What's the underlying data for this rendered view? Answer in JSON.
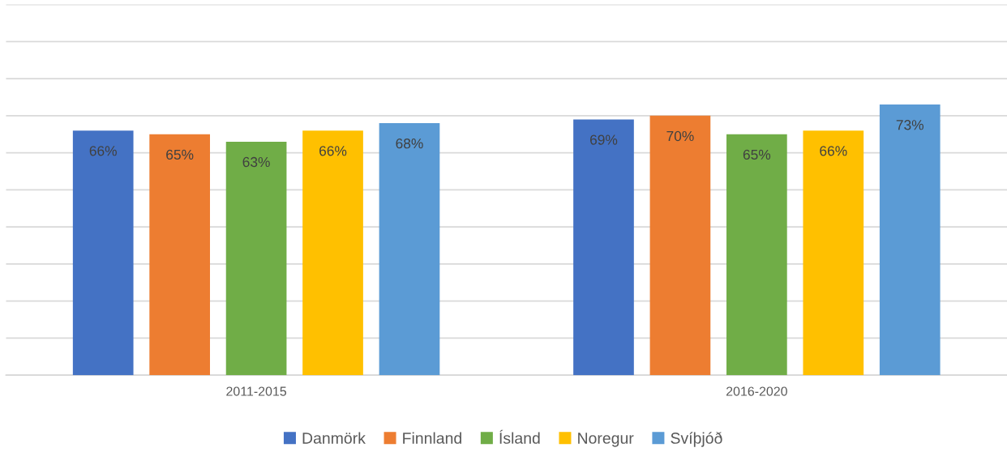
{
  "chart_data": {
    "type": "bar",
    "categories": [
      "2011-2015",
      "2016-2020"
    ],
    "series": [
      {
        "name": "Danmörk",
        "color": "#4472c4",
        "values": [
          66,
          69
        ],
        "value_labels": [
          "66%",
          "69%"
        ]
      },
      {
        "name": "Finnland",
        "color": "#ed7d31",
        "values": [
          65,
          70
        ],
        "value_labels": [
          "65%",
          "70%"
        ]
      },
      {
        "name": "Ísland",
        "color": "#70ad47",
        "values": [
          63,
          65
        ],
        "value_labels": [
          "63%",
          "65%"
        ]
      },
      {
        "name": "Noregur",
        "color": "#ffc000",
        "values": [
          66,
          66
        ],
        "value_labels": [
          "66%",
          "66%"
        ]
      },
      {
        "name": "Svíþjóð",
        "color": "#5b9bd5",
        "values": [
          68,
          73
        ],
        "value_labels": [
          "68%",
          "73%"
        ]
      }
    ],
    "ylim": [
      0,
      100
    ],
    "yticks": [
      {
        "value": 0,
        "label": null
      },
      {
        "value": 10,
        "label": null
      },
      {
        "value": 20,
        "label": null
      },
      {
        "value": 30,
        "label": null
      },
      {
        "value": 40,
        "label": null
      },
      {
        "value": 50,
        "label": null
      },
      {
        "value": 60,
        "label": null
      },
      {
        "value": 70,
        "label": null
      },
      {
        "value": 80,
        "label": null
      },
      {
        "value": 90,
        "label": null
      },
      {
        "value": 100,
        "label": null
      }
    ],
    "tick_labels": "x",
    "grid": "y",
    "legend": "bottom"
  }
}
